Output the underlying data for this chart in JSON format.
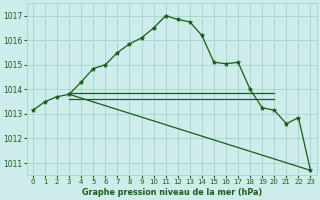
{
  "background_color": "#ceecea",
  "grid_color": "#a8d8d4",
  "line_color": "#1a5c1a",
  "text_color": "#1a5c1a",
  "xlabel": "Graphe pression niveau de la mer (hPa)",
  "ylim": [
    1010.5,
    1017.5
  ],
  "xlim": [
    -0.5,
    23.5
  ],
  "yticks": [
    1011,
    1012,
    1013,
    1014,
    1015,
    1016,
    1017
  ],
  "xticks": [
    0,
    1,
    2,
    3,
    4,
    5,
    6,
    7,
    8,
    9,
    10,
    11,
    12,
    13,
    14,
    15,
    16,
    17,
    18,
    19,
    20,
    21,
    22,
    23
  ],
  "series": [
    {
      "x": [
        0,
        1,
        2,
        3,
        4,
        5,
        6,
        7,
        8,
        9,
        10,
        11,
        12,
        13,
        14,
        15,
        16,
        17,
        18,
        19,
        20,
        21,
        22,
        23
      ],
      "y": [
        1013.15,
        1013.5,
        1013.7,
        1013.8,
        1014.3,
        1014.85,
        1015.0,
        1015.5,
        1015.85,
        1016.1,
        1016.5,
        1017.0,
        1016.85,
        1016.75,
        1016.2,
        1015.1,
        1015.05,
        1015.1,
        1014.0,
        1013.25,
        1013.15,
        1012.6,
        1012.85,
        1010.7
      ],
      "marker": true
    },
    {
      "x": [
        3,
        20
      ],
      "y": [
        1013.85,
        1013.85
      ],
      "marker": false
    },
    {
      "x": [
        3,
        20
      ],
      "y": [
        1013.6,
        1013.6
      ],
      "marker": false
    },
    {
      "x": [
        3,
        23
      ],
      "y": [
        1013.8,
        1010.7
      ],
      "marker": false
    }
  ]
}
